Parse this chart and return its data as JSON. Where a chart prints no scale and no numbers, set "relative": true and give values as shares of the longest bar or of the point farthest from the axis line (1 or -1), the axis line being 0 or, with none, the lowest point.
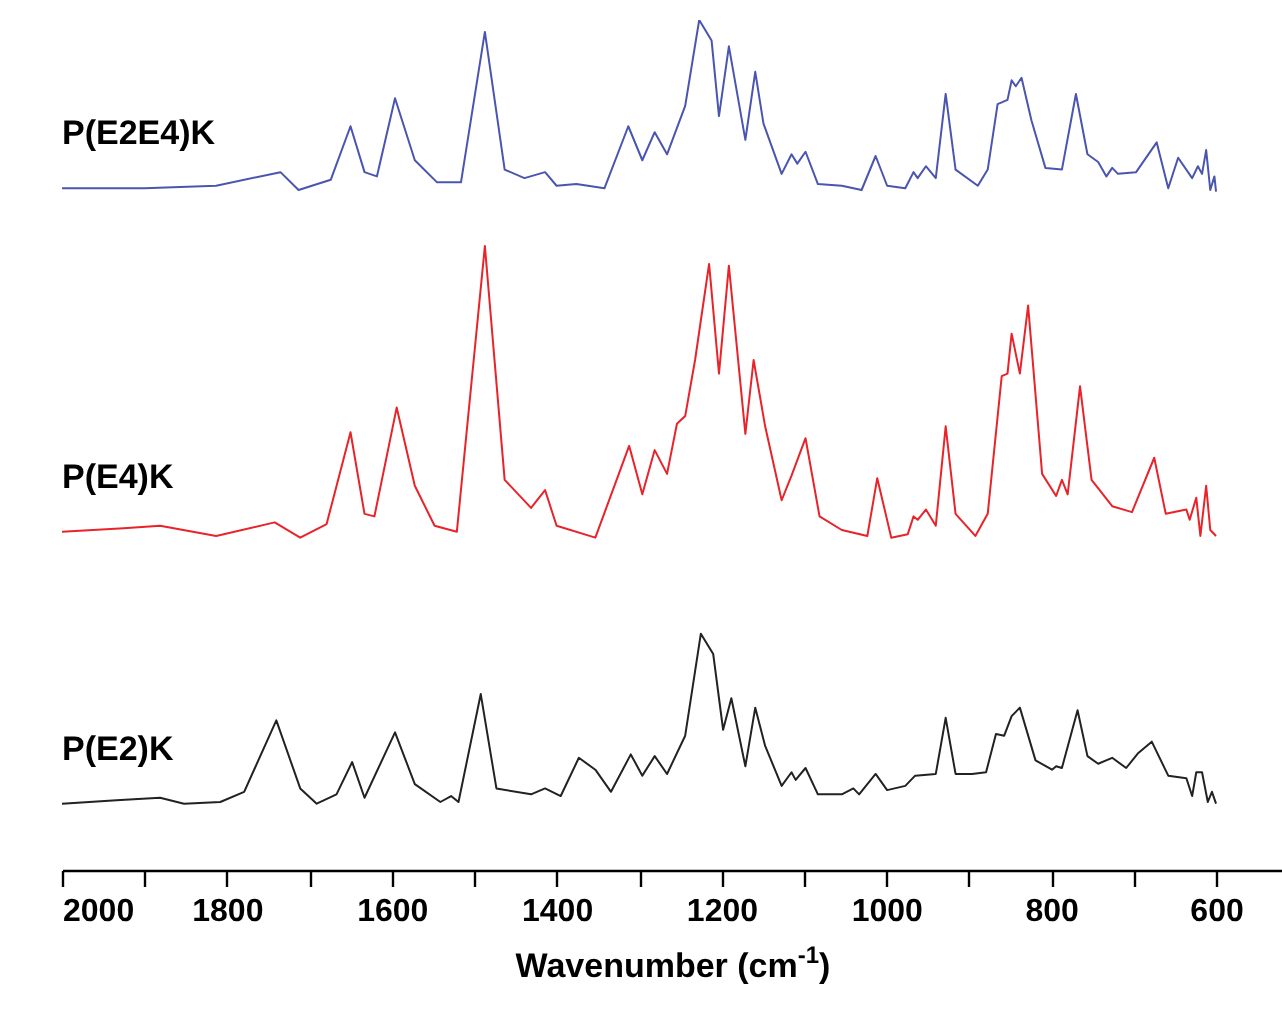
{
  "chart_data": {
    "type": "line",
    "relative": true,
    "xlabel": "Wavenumber (cm$^{-1}$)",
    "xlim": [
      2000,
      520
    ],
    "xticks": [
      2000,
      {
        "value": 1900,
        "label": null
      },
      1800,
      {
        "value": 1700,
        "label": null
      },
      1600,
      {
        "value": 1500,
        "label": null
      },
      1400,
      {
        "value": 1300,
        "label": null
      },
      1200,
      {
        "value": 1100,
        "label": null
      },
      1000,
      {
        "value": 900,
        "label": null
      },
      800,
      {
        "value": 700,
        "label": null
      },
      600
    ],
    "series": [
      {
        "name": "P(E2E4)K",
        "color": "#4a55b0",
        "x": [
          2000,
          1900,
          1813,
          1735,
          1713,
          1674,
          1650,
          1633,
          1618,
          1596,
          1572,
          1545,
          1516,
          1487,
          1463,
          1439,
          1414,
          1400,
          1376,
          1342,
          1313,
          1296,
          1281,
          1266,
          1244,
          1227,
          1212,
          1203,
          1191,
          1171,
          1159,
          1149,
          1127,
          1115,
          1108,
          1098,
          1083,
          1054,
          1030,
          1013,
          999,
          977,
          967,
          962,
          952,
          940,
          928,
          916,
          889,
          877,
          865,
          853,
          848,
          843,
          836,
          824,
          807,
          787,
          770,
          756,
          743,
          733,
          726,
          719,
          697,
          672,
          658,
          646,
          629,
          622,
          617,
          612,
          607,
          602,
          600
        ],
        "values": [
          0.802,
          0.802,
          0.805,
          0.821,
          0.8,
          0.812,
          0.875,
          0.821,
          0.816,
          0.908,
          0.835,
          0.809,
          0.809,
          0.986,
          0.824,
          0.814,
          0.821,
          0.805,
          0.807,
          0.802,
          0.875,
          0.835,
          0.868,
          0.842,
          0.899,
          1.0,
          0.976,
          0.887,
          0.969,
          0.859,
          0.939,
          0.878,
          0.819,
          0.842,
          0.831,
          0.845,
          0.807,
          0.805,
          0.8,
          0.84,
          0.805,
          0.802,
          0.821,
          0.814,
          0.828,
          0.814,
          0.913,
          0.824,
          0.805,
          0.824,
          0.901,
          0.906,
          0.929,
          0.922,
          0.932,
          0.882,
          0.826,
          0.824,
          0.913,
          0.842,
          0.833,
          0.816,
          0.826,
          0.819,
          0.821,
          0.856,
          0.802,
          0.838,
          0.814,
          0.828,
          0.819,
          0.847,
          0.8,
          0.816,
          0.798
        ]
      },
      {
        "name": "P(E4)K",
        "color": "#e8232a",
        "x": [
          2000,
          1925,
          1881,
          1813,
          1742,
          1711,
          1679,
          1650,
          1633,
          1621,
          1594,
          1572,
          1548,
          1521,
          1487,
          1463,
          1431,
          1414,
          1400,
          1353,
          1312,
          1296,
          1281,
          1266,
          1254,
          1244,
          1232,
          1215,
          1203,
          1191,
          1171,
          1161,
          1147,
          1127,
          1115,
          1098,
          1081,
          1054,
          1023,
          1011,
          994,
          974,
          967,
          962,
          952,
          940,
          928,
          916,
          892,
          877,
          860,
          853,
          848,
          838,
          828,
          811,
          794,
          787,
          780,
          765,
          751,
          726,
          702,
          675,
          661,
          636,
          632,
          624,
          619,
          612,
          607,
          600
        ],
        "values": [
          0.398,
          0.402,
          0.405,
          0.393,
          0.409,
          0.391,
          0.407,
          0.515,
          0.419,
          0.416,
          0.544,
          0.452,
          0.405,
          0.398,
          0.734,
          0.459,
          0.426,
          0.447,
          0.405,
          0.391,
          0.499,
          0.442,
          0.494,
          0.466,
          0.525,
          0.534,
          0.6,
          0.713,
          0.584,
          0.711,
          0.513,
          0.6,
          0.522,
          0.435,
          0.464,
          0.508,
          0.416,
          0.4,
          0.393,
          0.461,
          0.391,
          0.395,
          0.416,
          0.412,
          0.424,
          0.405,
          0.522,
          0.419,
          0.393,
          0.419,
          0.581,
          0.584,
          0.631,
          0.584,
          0.664,
          0.466,
          0.44,
          0.459,
          0.442,
          0.569,
          0.459,
          0.428,
          0.421,
          0.485,
          0.419,
          0.424,
          0.412,
          0.438,
          0.393,
          0.452,
          0.4,
          0.393
        ]
      },
      {
        "name": "P(E2)K",
        "color": "#222222",
        "x": [
          2000,
          1934,
          1881,
          1852,
          1808,
          1779,
          1740,
          1711,
          1691,
          1667,
          1648,
          1633,
          1596,
          1572,
          1541,
          1528,
          1519,
          1492,
          1473,
          1431,
          1414,
          1395,
          1373,
          1353,
          1334,
          1310,
          1296,
          1281,
          1266,
          1244,
          1225,
          1210,
          1198,
          1188,
          1171,
          1159,
          1147,
          1127,
          1115,
          1110,
          1098,
          1083,
          1054,
          1040,
          1033,
          1013,
          999,
          977,
          965,
          940,
          928,
          916,
          896,
          879,
          867,
          857,
          848,
          838,
          819,
          799,
          794,
          787,
          768,
          756,
          743,
          726,
          709,
          695,
          678,
          658,
          636,
          629,
          624,
          617,
          610,
          605,
          600
        ],
        "values": [
          0.078,
          0.082,
          0.085,
          0.078,
          0.08,
          0.092,
          0.176,
          0.096,
          0.078,
          0.089,
          0.127,
          0.085,
          0.162,
          0.101,
          0.08,
          0.087,
          0.08,
          0.207,
          0.096,
          0.089,
          0.096,
          0.087,
          0.132,
          0.118,
          0.092,
          0.136,
          0.111,
          0.134,
          0.113,
          0.158,
          0.278,
          0.254,
          0.165,
          0.202,
          0.122,
          0.191,
          0.146,
          0.099,
          0.115,
          0.106,
          0.12,
          0.089,
          0.089,
          0.096,
          0.089,
          0.113,
          0.094,
          0.099,
          0.111,
          0.113,
          0.179,
          0.113,
          0.113,
          0.115,
          0.16,
          0.158,
          0.181,
          0.191,
          0.129,
          0.118,
          0.122,
          0.12,
          0.188,
          0.134,
          0.125,
          0.132,
          0.12,
          0.137,
          0.151,
          0.111,
          0.108,
          0.087,
          0.115,
          0.115,
          0.08,
          0.092,
          0.078
        ]
      }
    ]
  }
}
